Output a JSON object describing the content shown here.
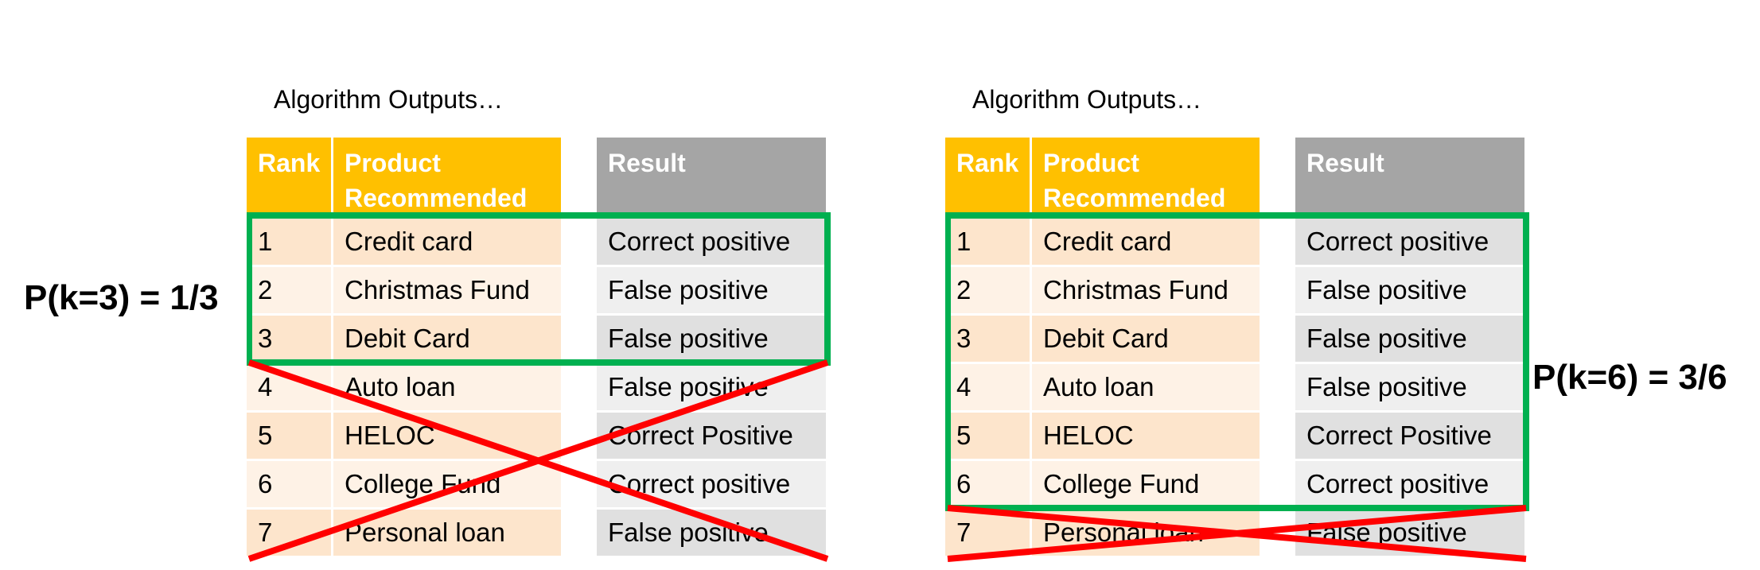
{
  "left": {
    "caption": "Algorithm Outputs…",
    "precision_label": "P(k=3) = 1/3",
    "k": 3
  },
  "right": {
    "caption": "Algorithm Outputs…",
    "precision_label": "P(k=6) = 3/6",
    "k": 6
  },
  "table": {
    "headers": {
      "rank": "Rank",
      "product": "Product Recommended",
      "result": "Result"
    },
    "rows": [
      {
        "rank": "1",
        "product": "Credit card",
        "result": "Correct positive"
      },
      {
        "rank": "2",
        "product": "Christmas Fund",
        "result": "False positive"
      },
      {
        "rank": "3",
        "product": "Debit Card",
        "result": "False positive"
      },
      {
        "rank": "4",
        "product": "Auto loan",
        "result": "False positive"
      },
      {
        "rank": "5",
        "product": "HELOC",
        "result": "Correct Positive"
      },
      {
        "rank": "6",
        "product": "College Fund",
        "result": "Correct positive"
      },
      {
        "rank": "7",
        "product": "Personal loan",
        "result": "False positive"
      }
    ]
  },
  "colors": {
    "header_orange": "#ffc000",
    "header_gray": "#a5a5a5",
    "highlight_box": "#00b050",
    "strike": "#ff0000"
  }
}
